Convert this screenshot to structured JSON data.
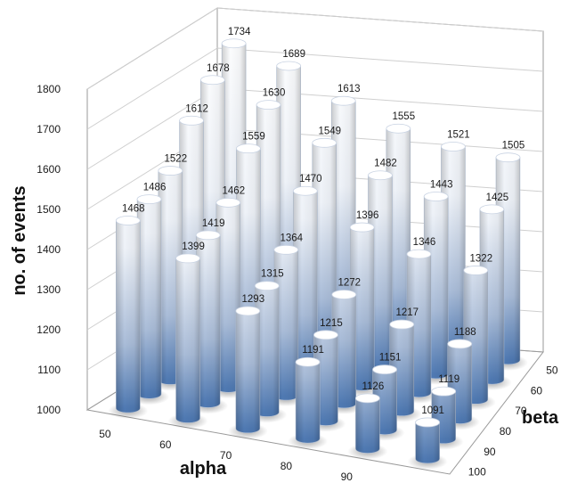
{
  "chart_data": {
    "type": "bar3d",
    "xlabel": "alpha",
    "ylabel": "no. of events",
    "zlabel": "beta",
    "alpha": [
      50,
      60,
      70,
      80,
      90,
      100
    ],
    "beta": [
      50,
      60,
      70,
      80,
      90,
      100
    ],
    "ylim": [
      1000,
      1800
    ],
    "yticks": [
      1000,
      1100,
      1200,
      1300,
      1400,
      1500,
      1600,
      1700,
      1800
    ],
    "grid": true,
    "series": [
      {
        "beta": "50",
        "values": [
          1734,
          1689,
          1613,
          1555,
          1521,
          1505
        ]
      },
      {
        "beta": "60",
        "values": [
          1678,
          1630,
          1549,
          1482,
          1443,
          1425
        ]
      },
      {
        "beta": "70",
        "values": [
          1612,
          1559,
          1470,
          1396,
          1346,
          1322
        ]
      },
      {
        "beta": "80",
        "values": [
          1522,
          1462,
          1364,
          1272,
          1217,
          1188
        ]
      },
      {
        "beta": "90",
        "values": [
          1486,
          1419,
          1315,
          1215,
          1151,
          1119
        ]
      },
      {
        "beta": "100",
        "values": [
          1468,
          1399,
          1293,
          1191,
          1126,
          1091
        ]
      }
    ],
    "colors": {
      "bar_base": "#4f79b2",
      "bar_top": "#ffffff",
      "grid": "#cfcfcf",
      "axis": "#9a9a9a"
    }
  }
}
